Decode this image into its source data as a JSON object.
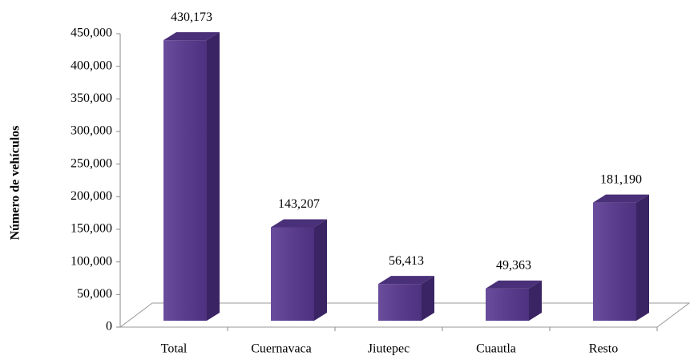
{
  "chart_data": {
    "type": "bar3d",
    "y_axis_label": "Número de vehículos",
    "categories": [
      "Total",
      "Cuernavaca",
      "Jiutepec",
      "Cuautla",
      "Resto"
    ],
    "values": [
      430173,
      143207,
      56413,
      49363,
      181190
    ],
    "value_labels": [
      "430,173",
      "143,207",
      "56,413",
      "49,363",
      "181,190"
    ],
    "color": "#5a3d8c",
    "ylim": [
      0,
      450000
    ],
    "yticks": [
      0,
      {
        "value": 50000,
        "label": "50,000"
      },
      {
        "value": 100000,
        "label": "100,000"
      },
      {
        "value": 150000,
        "label": "150,000"
      },
      {
        "value": 200000,
        "label": "200,000"
      },
      {
        "value": 250000,
        "label": "250,000"
      },
      {
        "value": 300000,
        "label": "300,000"
      },
      {
        "value": 350000,
        "label": "350,000"
      },
      {
        "value": 400000,
        "label": "400,000"
      },
      {
        "value": 450000,
        "label": "450,000"
      }
    ]
  }
}
